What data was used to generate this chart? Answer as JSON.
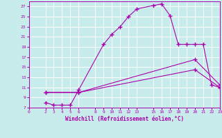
{
  "xlabel": "Windchill (Refroidissement éolien,°C)",
  "bg_color": "#c8ecec",
  "line_color": "#aa00aa",
  "grid_color": "#ffffff",
  "xlim": [
    0,
    23
  ],
  "ylim": [
    7,
    28
  ],
  "xticks": [
    0,
    2,
    3,
    4,
    5,
    6,
    8,
    9,
    10,
    11,
    12,
    13,
    15,
    16,
    17,
    18,
    19,
    20,
    21,
    22,
    23
  ],
  "yticks": [
    7,
    9,
    11,
    13,
    15,
    17,
    19,
    21,
    23,
    25,
    27
  ],
  "line1_x": [
    2,
    3,
    4,
    5,
    6,
    9,
    10,
    11,
    12,
    13,
    15,
    16,
    17,
    18,
    19,
    20,
    21,
    22,
    23
  ],
  "line1_y": [
    8,
    7.5,
    7.5,
    7.5,
    10.5,
    19.5,
    21.5,
    23,
    25,
    26.5,
    27.2,
    27.5,
    25.2,
    19.5,
    19.5,
    19.5,
    19.5,
    11.5,
    11
  ],
  "line2_x": [
    2,
    6,
    20,
    23
  ],
  "line2_y": [
    10,
    10,
    14.5,
    11
  ],
  "line3_x": [
    2,
    6,
    20,
    23
  ],
  "line3_y": [
    10,
    10,
    16.5,
    11.5
  ]
}
